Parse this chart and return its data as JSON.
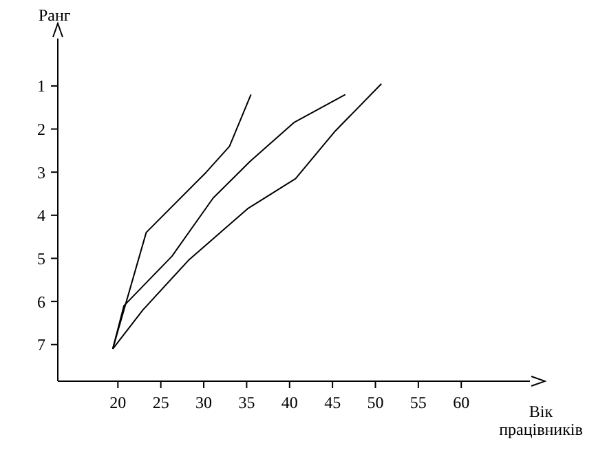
{
  "chart_data": {
    "type": "line",
    "xlabel": "Вік працівників",
    "ylabel": "Ранг",
    "xlim": [
      13,
      68
    ],
    "ylim": [
      7.85,
      -0.1
    ],
    "xticks": [
      20,
      25,
      30,
      35,
      40,
      45,
      50,
      55,
      60
    ],
    "yticks": [
      1,
      2,
      3,
      4,
      5,
      6,
      7
    ],
    "marker": "none",
    "line_style": "solid",
    "series": [
      {
        "color": "#000000",
        "x": [
          19.4,
          23.3,
          30.3,
          33.0,
          35.5
        ],
        "values": [
          7.1,
          4.4,
          3.0,
          2.4,
          1.2
        ]
      },
      {
        "color": "#000000",
        "x": [
          19.4,
          20.7,
          26.3,
          31.1,
          35.4,
          40.5,
          46.5
        ],
        "values": [
          7.1,
          6.1,
          4.95,
          3.6,
          2.75,
          1.85,
          1.2
        ]
      },
      {
        "color": "#000000",
        "x": [
          19.4,
          22.9,
          28.2,
          35.1,
          40.7,
          45.3,
          50.7
        ],
        "values": [
          7.1,
          6.2,
          5.05,
          3.85,
          3.15,
          2.05,
          0.95
        ]
      }
    ]
  }
}
